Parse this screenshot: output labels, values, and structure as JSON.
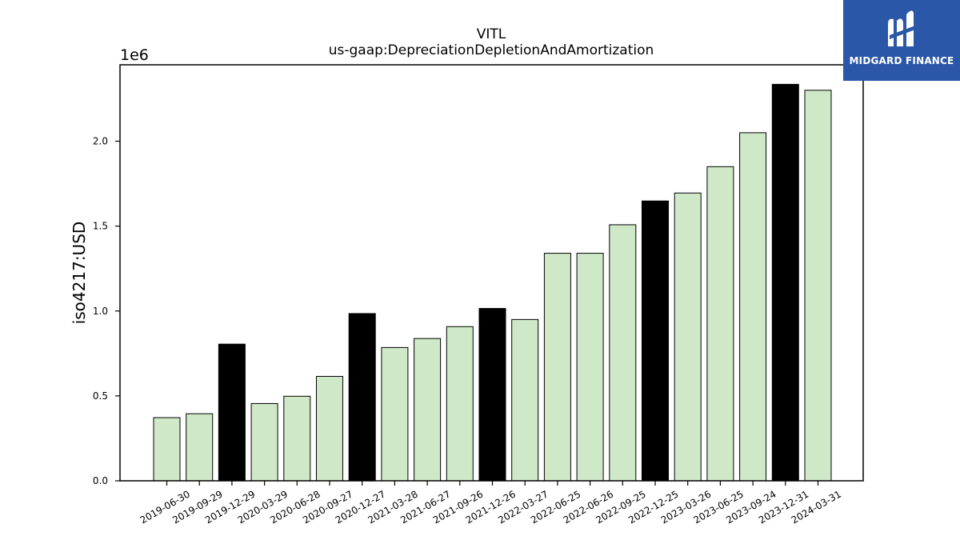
{
  "chart_data": {
    "type": "bar",
    "title": "VITL",
    "subtitle": "us-gaap:DepreciationDepletionAndAmortization",
    "xlabel": "",
    "ylabel": "iso4217:USD",
    "y_offset_label": "1e6",
    "ylim": [
      0,
      2.45
    ],
    "yticks": [
      "0.0",
      "0.5",
      "1.0",
      "1.5",
      "2.0"
    ],
    "grid": false,
    "categories": [
      "2019-06-30",
      "2019-09-29",
      "2019-12-29",
      "2020-03-29",
      "2020-06-28",
      "2020-09-27",
      "2020-12-27",
      "2021-03-28",
      "2021-06-27",
      "2021-09-26",
      "2021-12-26",
      "2022-03-27",
      "2022-06-25",
      "2022-06-26",
      "2022-09-25",
      "2022-12-25",
      "2023-03-26",
      "2023-06-25",
      "2023-09-24",
      "2023-12-31",
      "2024-03-31"
    ],
    "values": [
      0.372,
      0.395,
      0.805,
      0.455,
      0.498,
      0.615,
      0.985,
      0.785,
      0.838,
      0.908,
      1.015,
      0.95,
      1.34,
      1.34,
      1.508,
      1.648,
      1.695,
      1.85,
      2.05,
      2.335,
      2.3
    ],
    "highlight": [
      false,
      false,
      true,
      false,
      false,
      false,
      true,
      false,
      false,
      false,
      true,
      false,
      false,
      false,
      false,
      true,
      false,
      false,
      false,
      true,
      false
    ],
    "colors": {
      "bar": "#cfe8c7",
      "highlight": "#000000",
      "edge": "#000000"
    }
  },
  "logo": {
    "text": "MIDGARD FINANCE",
    "background": "#2b57a8"
  }
}
